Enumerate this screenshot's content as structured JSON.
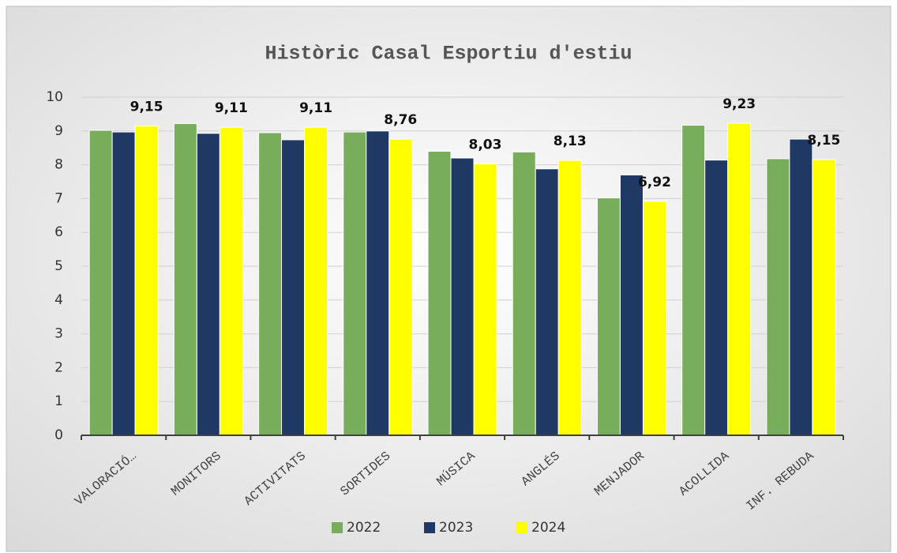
{
  "chart_data": {
    "type": "bar",
    "title": "Històric Casal Esportiu d'estiu",
    "categories": [
      "VALORACIÓ…",
      "MONITORS",
      "ACTIVITATS",
      "SORTIDES",
      "MÚSICA",
      "ANGLÉS",
      "MENJADOR",
      "ACOLLIDA",
      "INF. REBUDA"
    ],
    "series": [
      {
        "name": "2022",
        "color": "#77ad5b",
        "values": [
          9.02,
          9.22,
          8.95,
          8.97,
          8.4,
          8.38,
          7.02,
          9.17,
          8.18
        ]
      },
      {
        "name": "2023",
        "color": "#1f3864",
        "values": [
          8.97,
          8.93,
          8.74,
          9.0,
          8.2,
          7.88,
          7.7,
          8.14,
          8.76
        ]
      },
      {
        "name": "2024",
        "color": "#ffff00",
        "values": [
          9.15,
          9.11,
          9.11,
          8.76,
          8.03,
          8.13,
          6.92,
          9.23,
          8.15
        ],
        "value_labels": [
          "9,15",
          "9,11",
          "9,11",
          "8,76",
          "8,03",
          "8,13",
          "6,92",
          "9,23",
          "8,15"
        ]
      }
    ],
    "ylim": [
      0,
      10
    ],
    "yticks": [
      0,
      1,
      2,
      3,
      4,
      5,
      6,
      7,
      8,
      9,
      10
    ],
    "grid": true,
    "legend": "bottom"
  }
}
